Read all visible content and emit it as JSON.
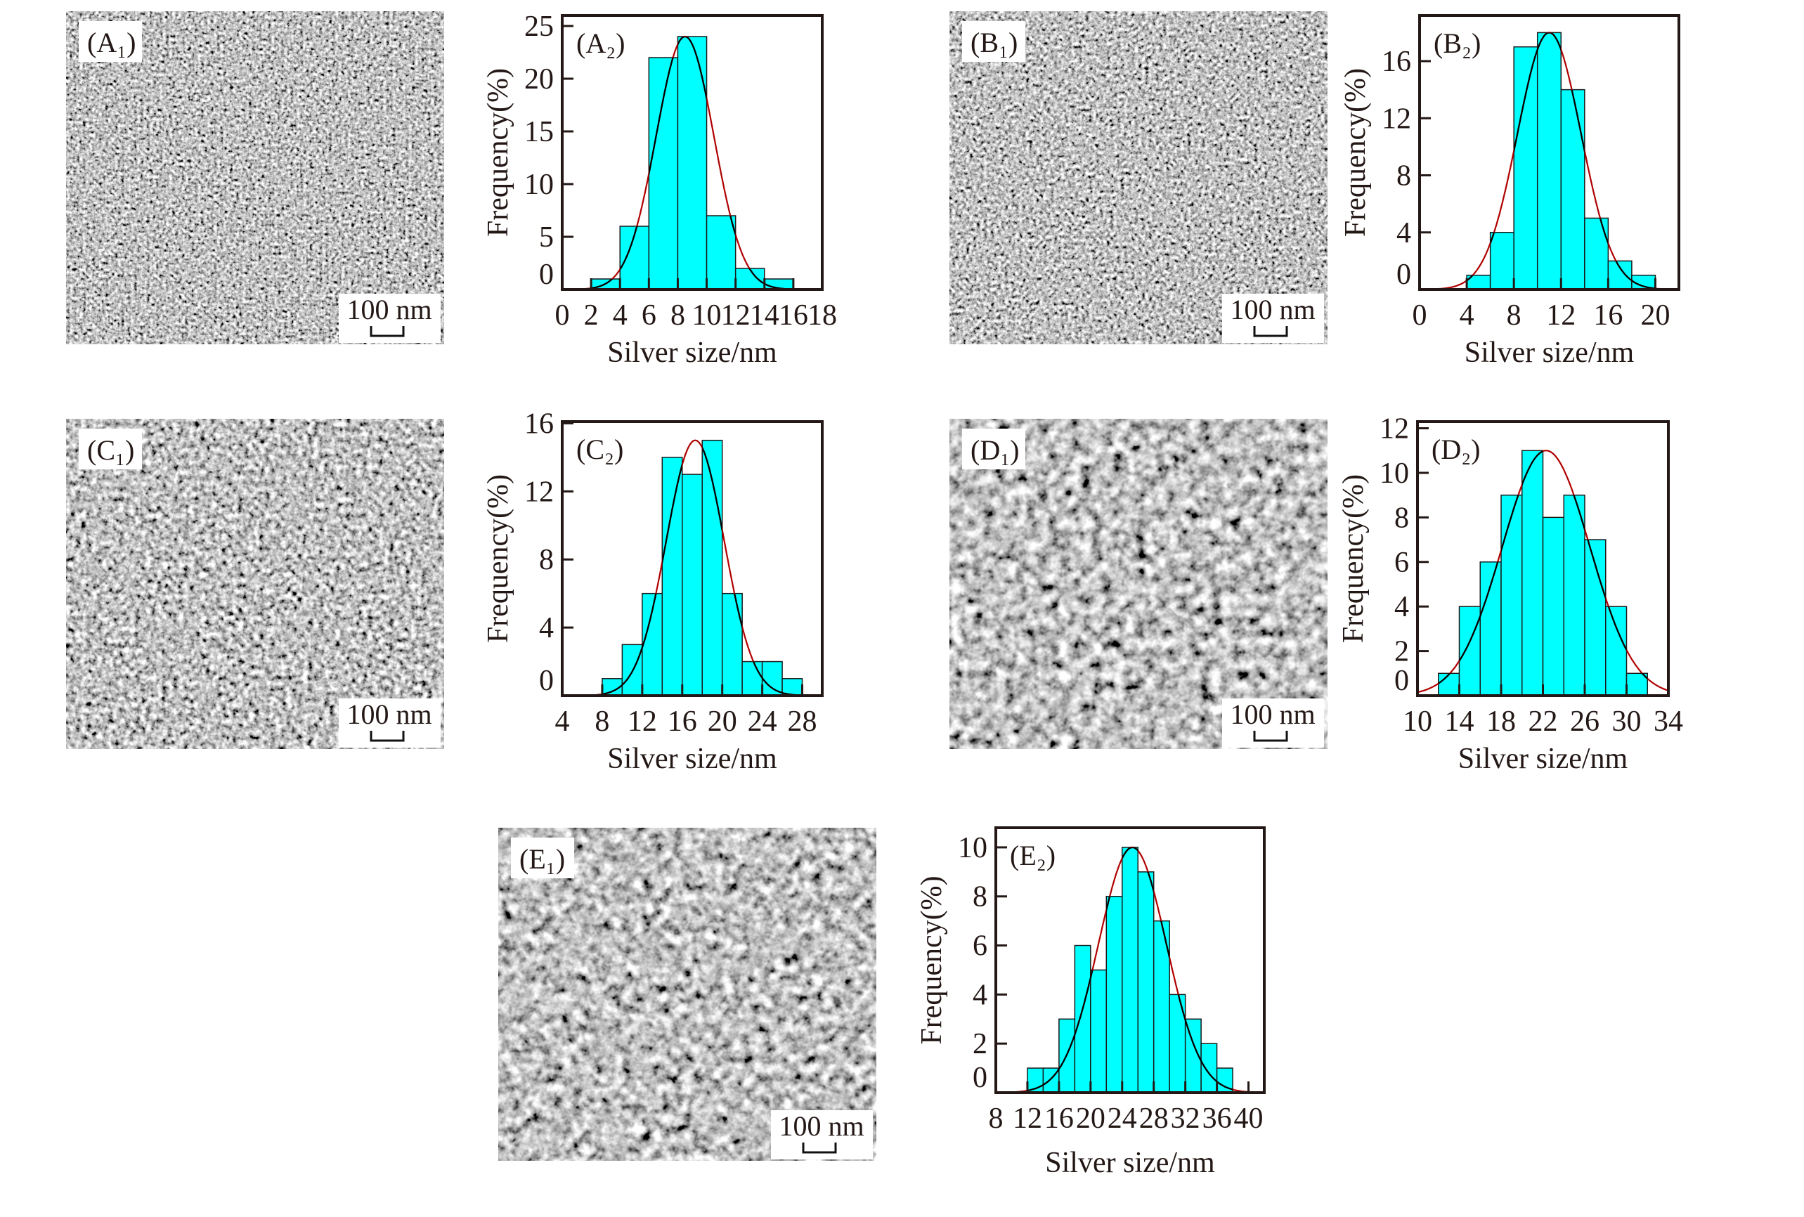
{
  "colors": {
    "bar_fill": "#00FFFF",
    "bar_edge": "#1a1a1a",
    "fit_outside": "#B00000",
    "fit_inside": "#000000",
    "axis": "#231815"
  },
  "sem_images": [
    {
      "label": "(A₁)",
      "scale_bar": "100 nm"
    },
    {
      "label": "(B₁)",
      "scale_bar": "100 nm"
    },
    {
      "label": "(C₁)",
      "scale_bar": "100 nm"
    },
    {
      "label": "(D₁)",
      "scale_bar": "100 nm"
    },
    {
      "label": "(E₁)",
      "scale_bar": "100 nm"
    }
  ],
  "chart_data": [
    {
      "type": "bar",
      "panel": "(A₂)",
      "xlabel": "Silver size/nm",
      "ylabel": "Frequency(%)",
      "xlim": [
        0,
        18
      ],
      "ylim": [
        0,
        26
      ],
      "xticks": [
        0,
        2,
        4,
        6,
        8,
        10,
        12,
        14,
        16,
        18
      ],
      "yticks": [
        0,
        5,
        10,
        15,
        20,
        25
      ],
      "bin_width": 2,
      "bin_starts": [
        2,
        4,
        6,
        8,
        10,
        12,
        14
      ],
      "values": [
        1,
        6,
        22,
        24,
        7,
        2,
        1
      ],
      "fit": {
        "type": "gaussian",
        "mean": 8.5,
        "sigma": 2.0,
        "peak": 24
      }
    },
    {
      "type": "bar",
      "panel": "(B₂)",
      "xlabel": "Silver size/nm",
      "ylabel": "Frequency(%)",
      "xlim": [
        0,
        22
      ],
      "ylim": [
        0,
        19.2
      ],
      "xticks": [
        0,
        4,
        8,
        12,
        16,
        20
      ],
      "yticks": [
        0,
        4,
        8,
        12,
        16
      ],
      "bin_width": 2,
      "bin_starts": [
        4,
        6,
        8,
        10,
        12,
        14,
        16,
        18
      ],
      "values": [
        1,
        4,
        17,
        18,
        14,
        5,
        2,
        1
      ],
      "fit": {
        "type": "gaussian",
        "mean": 11,
        "sigma": 2.7,
        "peak": 18
      }
    },
    {
      "type": "bar",
      "panel": "(C₂)",
      "xlabel": "Silver size/nm",
      "ylabel": "Frequency(%)",
      "xlim": [
        4,
        30
      ],
      "ylim": [
        0,
        16.1
      ],
      "xticks": [
        4,
        8,
        12,
        16,
        20,
        24,
        28
      ],
      "yticks": [
        0,
        4,
        8,
        12,
        16
      ],
      "bin_width": 2,
      "bin_starts": [
        8,
        10,
        12,
        14,
        16,
        18,
        20,
        22,
        24,
        26
      ],
      "values": [
        1,
        3,
        6,
        14,
        13,
        15,
        6,
        2,
        2,
        1
      ],
      "fit": {
        "type": "gaussian",
        "mean": 17.3,
        "sigma": 2.9,
        "peak": 15
      }
    },
    {
      "type": "bar",
      "panel": "(D₂)",
      "xlabel": "Silver size/nm",
      "ylabel": "Frequency(%)",
      "xlim": [
        10,
        34
      ],
      "ylim": [
        0,
        12.3
      ],
      "xticks": [
        10,
        14,
        18,
        22,
        26,
        30,
        34
      ],
      "yticks": [
        0,
        2,
        4,
        6,
        8,
        10,
        12
      ],
      "bin_width": 2,
      "bin_starts": [
        12,
        14,
        16,
        18,
        20,
        22,
        24,
        26,
        28,
        30
      ],
      "values": [
        1,
        4,
        6,
        9,
        11,
        8,
        9,
        7,
        4,
        1
      ],
      "fit": {
        "type": "gaussian",
        "mean": 22.3,
        "sigma": 4.2,
        "peak": 11
      }
    },
    {
      "type": "bar",
      "panel": "(E₂)",
      "xlabel": "Silver size/nm",
      "ylabel": "Frequency(%)",
      "xlim": [
        8,
        42
      ],
      "ylim": [
        0,
        10.8
      ],
      "xticks": [
        8,
        12,
        16,
        20,
        24,
        28,
        32,
        36,
        40
      ],
      "yticks": [
        0,
        2,
        4,
        6,
        8,
        10
      ],
      "bin_width": 2,
      "bin_starts": [
        12,
        14,
        16,
        18,
        20,
        22,
        24,
        26,
        28,
        30,
        32,
        34,
        36
      ],
      "values": [
        1,
        1,
        3,
        6,
        5,
        8,
        10,
        9,
        7,
        4,
        3,
        2,
        1
      ],
      "fit": {
        "type": "gaussian",
        "mean": 25.3,
        "sigma": 4.3,
        "peak": 10
      }
    }
  ]
}
